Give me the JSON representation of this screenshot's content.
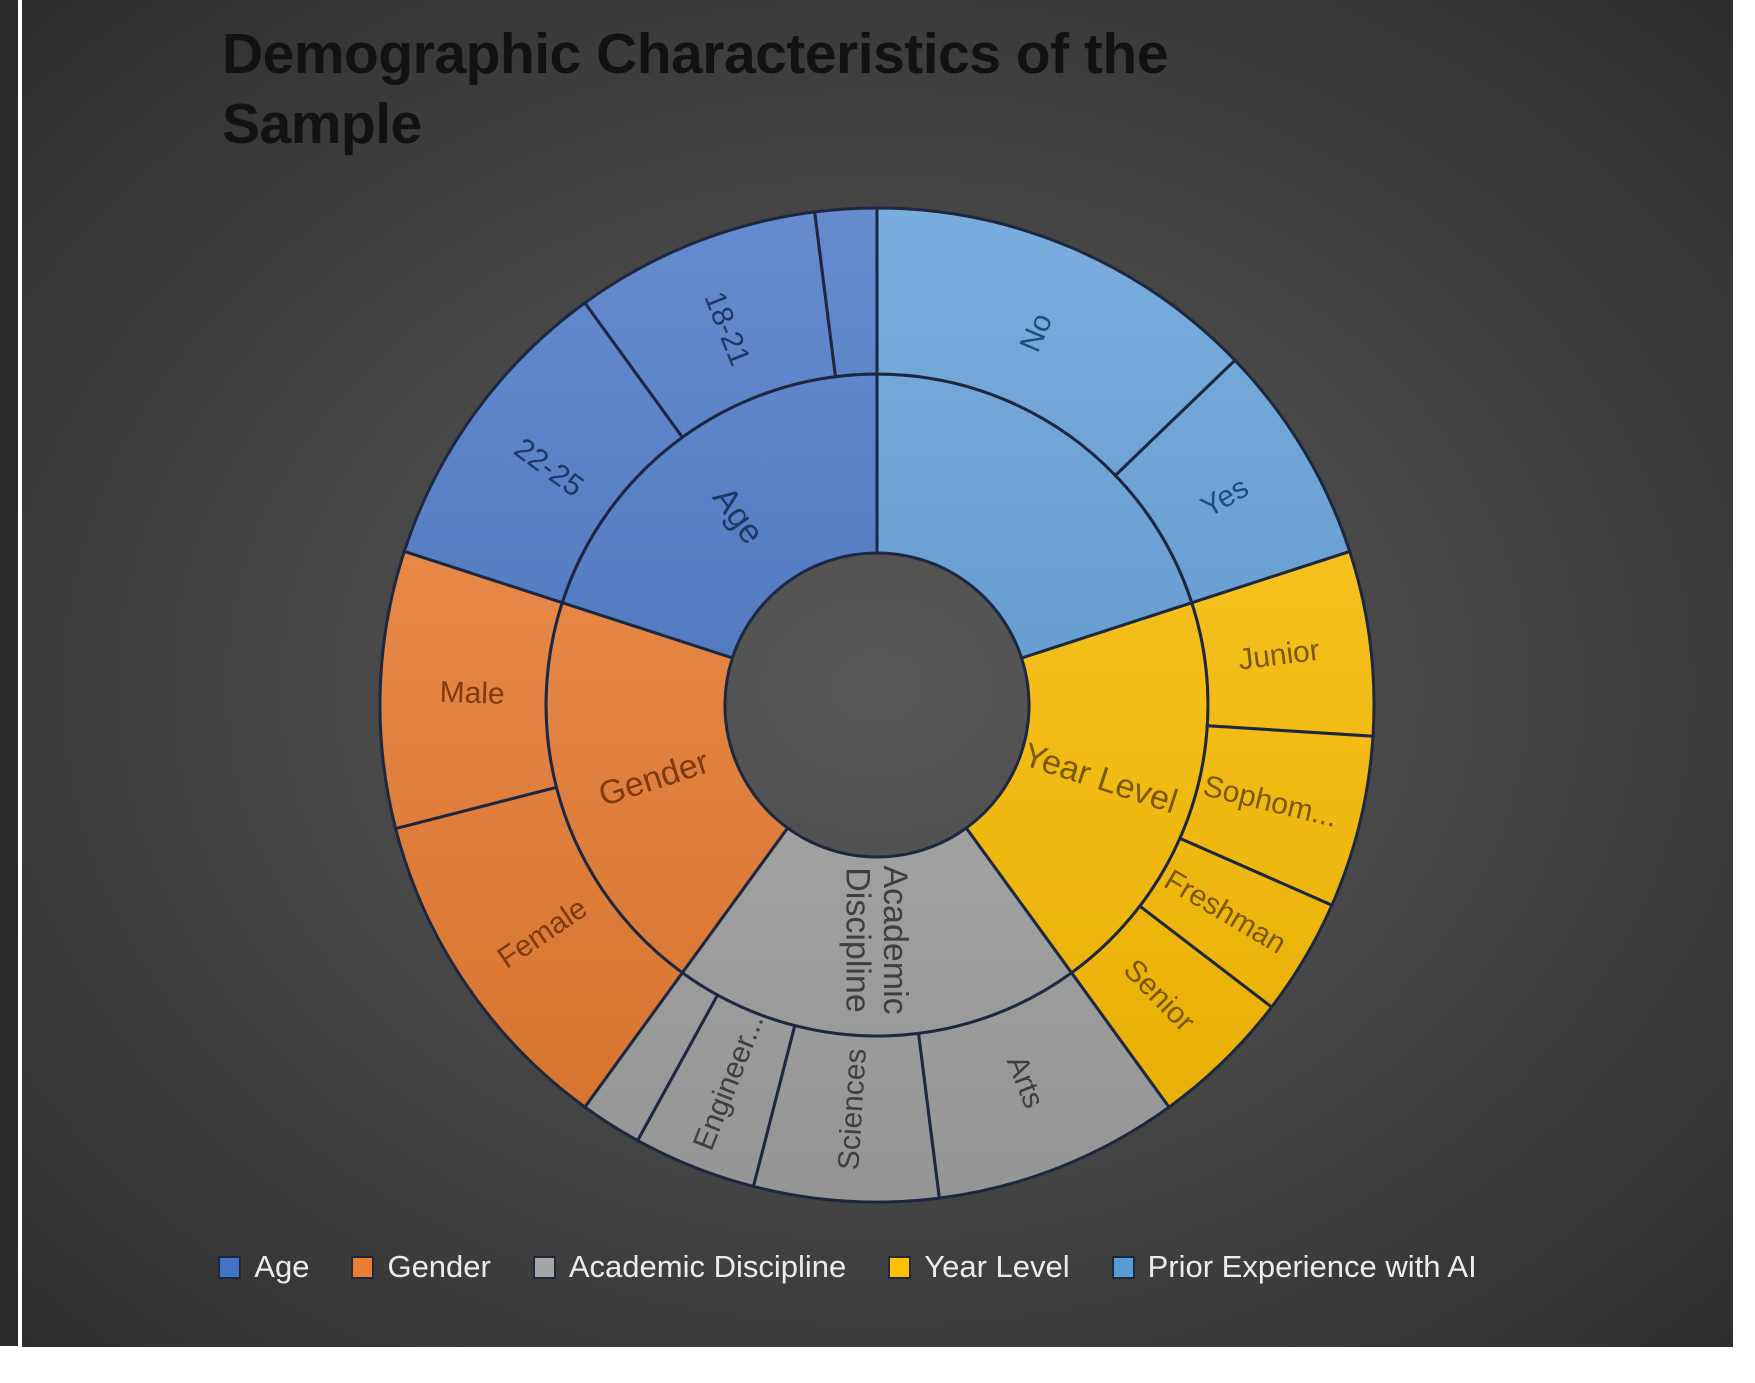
{
  "title": "Demographic Characteristics of the Sample",
  "colors": {
    "panel_background_center": "#585858",
    "panel_background_edge": "#2c2c2c",
    "segment_outline": "#1d2840",
    "title_text": "#121212",
    "legend_text": "#ececec",
    "donut_hole": "#575757"
  },
  "legend": {
    "items": [
      {
        "label": "Age",
        "color": "#4472C4"
      },
      {
        "label": "Gender",
        "color": "#ED7D31"
      },
      {
        "label": "Academic Discipline",
        "color": "#A5A5A5"
      },
      {
        "label": "Year Level",
        "color": "#FFC000"
      },
      {
        "label": "Prior Experience with AI",
        "color": "#5B9BD5"
      }
    ]
  },
  "chart_data": {
    "type": "sunburst",
    "title": "Demographic Characteristics of the Sample",
    "rings": 2,
    "layout": {
      "start_at": "12-oclock",
      "category_order_direction": "counterclockwise",
      "each_category_angle_deg": 72,
      "children_order_direction": "clockwise-within-category",
      "legend_position": "bottom",
      "values_are": "percent share of each demographic category (estimated from segment angles)"
    },
    "categories": [
      {
        "name": "Age",
        "color": "#4472C4",
        "label_text_color": "#1f3864",
        "inner_label_lines": [
          "Age"
        ],
        "children": [
          {
            "label": "22-25",
            "pct": 50
          },
          {
            "label": "18-21",
            "pct": 40
          },
          {
            "label": "",
            "pct": 10
          }
        ]
      },
      {
        "name": "Gender",
        "color": "#ED7D31",
        "label_text_color": "#7d3a0d",
        "inner_label_lines": [
          "Gender"
        ],
        "children": [
          {
            "label": "Female",
            "pct": 55
          },
          {
            "label": "Male",
            "pct": 45
          }
        ]
      },
      {
        "name": "Academic Discipline",
        "color": "#A5A5A5",
        "label_text_color": "#3f3f3f",
        "inner_label_lines": [
          "Academic",
          "Discipline"
        ],
        "children": [
          {
            "label": "Arts",
            "pct": 40
          },
          {
            "label": "Sciences",
            "pct": 30
          },
          {
            "label": "Engineer...",
            "pct": 20
          },
          {
            "label": "",
            "pct": 10
          }
        ]
      },
      {
        "name": "Year Level",
        "color": "#FFC000",
        "label_text_color": "#7b5800",
        "inner_label_lines": [
          "Year Level"
        ],
        "children": [
          {
            "label": "Junior",
            "pct": 30
          },
          {
            "label": "Sophom...",
            "pct": 28
          },
          {
            "label": "Freshman",
            "pct": 19
          },
          {
            "label": "Senior",
            "pct": 23
          }
        ]
      },
      {
        "name": "Prior Experience with AI",
        "color": "#5B9BD5",
        "label_text_color": "#1e4e79",
        "inner_label_lines": [],
        "children": [
          {
            "label": "No",
            "pct": 64
          },
          {
            "label": "Yes",
            "pct": 36
          }
        ]
      }
    ]
  }
}
